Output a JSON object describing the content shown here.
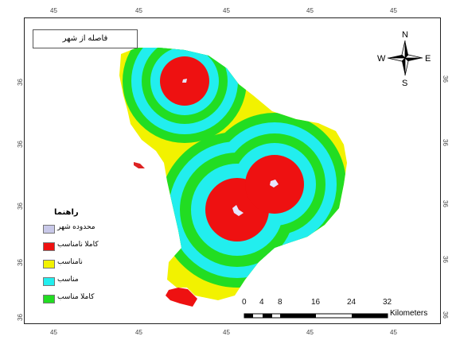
{
  "title": "فاصله از شهر",
  "axis_ticks": {
    "top": [
      "45",
      "45",
      "45",
      "45",
      "45"
    ],
    "bottom": [
      "45",
      "45",
      "45",
      "45",
      "45"
    ],
    "left": [
      "36",
      "36",
      "36",
      "36",
      "36"
    ],
    "right": [
      "36",
      "36",
      "36",
      "36",
      "36"
    ]
  },
  "north_arrow": {
    "n": "N",
    "s": "S",
    "e": "E",
    "w": "W",
    "icon": "compass-rose-icon"
  },
  "legend": {
    "title": "راهنما",
    "items": [
      {
        "label": "محدوده شهر",
        "color": "#c8c8e8"
      },
      {
        "label": "کاملا نامناسب",
        "color": "#ee1111"
      },
      {
        "label": "نامناسب",
        "color": "#f2f200"
      },
      {
        "label": "مناسب",
        "color": "#22eeee"
      },
      {
        "label": "کاملا مناسب",
        "color": "#22dd22"
      }
    ]
  },
  "scale_bar": {
    "labels": [
      "0",
      "4",
      "8",
      "16",
      "24",
      "32"
    ],
    "unit": "Kilometers"
  },
  "colors": {
    "study_area": "#f2f200",
    "very_suitable": "#22dd22",
    "suitable": "#22eeee",
    "very_unsuitable": "#ee1111",
    "city": "#c8c8e8"
  }
}
